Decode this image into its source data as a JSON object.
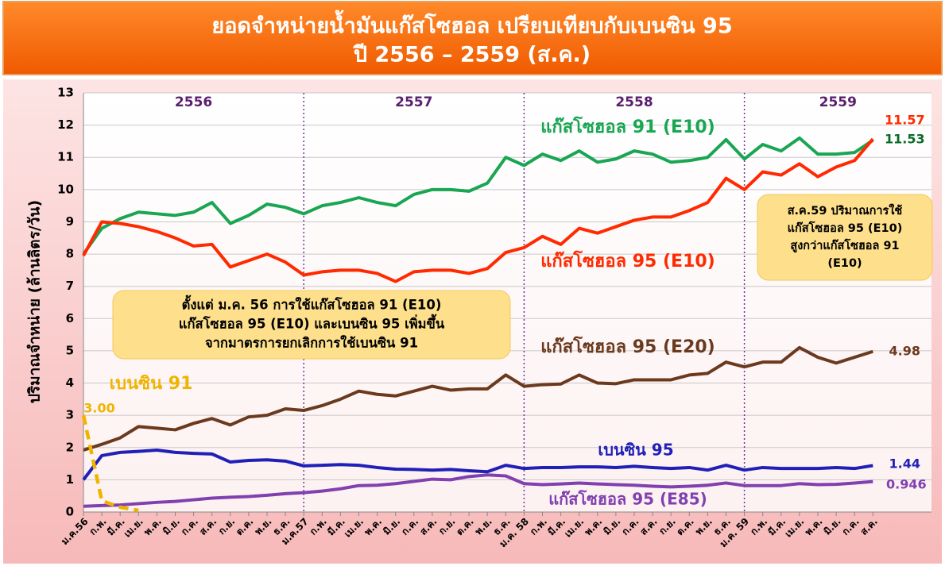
{
  "chart_data": {
    "type": "line",
    "title": [
      "ยอดจำหน่ายน้ำมันแก๊สโซฮอล เปรียบเทียบกับเบนซิน 95",
      "ปี 2556 – 2559 (ส.ค.)"
    ],
    "ylabel": "ปริมาณจำหน่าย  (ล้านลิตร/วัน)",
    "years": [
      "2556",
      "2557",
      "2558",
      "2559"
    ],
    "categories": [
      "ม.ค.56",
      "ก.พ.",
      "มี.ค.",
      "เม.ย.",
      "พ.ค.",
      "มิ.ย.",
      "ก.ค.",
      "ส.ค.",
      "ก.ย.",
      "ต.ค.",
      "พ.ย.",
      "ธ.ค.",
      "ม.ค.57",
      "ก.พ.",
      "มี.ค.",
      "เม.ย.",
      "พ.ค.",
      "มิ.ย.",
      "ก.ค.",
      "ส.ค.",
      "ก.ย.",
      "ต.ค.",
      "พ.ย.",
      "ธ.ค.",
      "ม.ค. 58",
      "ก.พ.",
      "มี.ค.",
      "เม.ย.",
      "พ.ค.",
      "มิ.ย.",
      "ก.ค.",
      "ส.ค.",
      "ก.ย.",
      "ต.ค.",
      "พ.ย.",
      "ธ.ค.",
      "ม.ค. 59",
      "ก.พ.",
      "มี.ค.",
      "เม.ย.",
      "พ.ค.",
      "มิ.ย.",
      "ก.ค.",
      "ส.ค."
    ],
    "ylim": [
      0,
      13
    ],
    "yticks": [
      0,
      1,
      2,
      3,
      4,
      5,
      6,
      7,
      8,
      9,
      10,
      11,
      12,
      13
    ],
    "grid": true,
    "series": [
      {
        "name": "แก๊สโซฮอล 91 (E10)",
        "color": "#19a653",
        "values": [
          8.0,
          8.8,
          9.1,
          9.3,
          9.25,
          9.2,
          9.3,
          9.6,
          8.95,
          9.2,
          9.55,
          9.45,
          9.25,
          9.5,
          9.6,
          9.75,
          9.6,
          9.5,
          9.85,
          10.0,
          10.0,
          9.95,
          10.2,
          11.0,
          10.75,
          11.1,
          10.9,
          11.2,
          10.85,
          10.95,
          11.2,
          11.1,
          10.85,
          10.9,
          11.0,
          11.55,
          10.95,
          11.4,
          11.2,
          11.6,
          11.1,
          11.1,
          11.15,
          11.53
        ],
        "value_labels": [
          null,
          null,
          null,
          null,
          null,
          null,
          null,
          null,
          null,
          null,
          null,
          null,
          null,
          null,
          null,
          null,
          null,
          null,
          null,
          null,
          null,
          null,
          null,
          null,
          null,
          null,
          null,
          null,
          null,
          null,
          null,
          null,
          null,
          null,
          null,
          null,
          null,
          null,
          null,
          null,
          null,
          null,
          null,
          "11.53"
        ]
      },
      {
        "name": "แก๊สโซฮอล 95 (E10)",
        "color": "#ff2a00",
        "values": [
          7.95,
          9.0,
          8.95,
          8.85,
          8.7,
          8.5,
          8.25,
          8.3,
          7.6,
          7.8,
          8.0,
          7.75,
          7.35,
          7.45,
          7.5,
          7.5,
          7.4,
          7.15,
          7.45,
          7.5,
          7.5,
          7.4,
          7.55,
          8.05,
          8.2,
          8.55,
          8.3,
          8.8,
          8.65,
          8.85,
          9.05,
          9.15,
          9.15,
          9.35,
          9.6,
          10.35,
          10.0,
          10.55,
          10.45,
          10.8,
          10.4,
          10.7,
          10.9,
          11.57
        ],
        "value_labels": [
          null,
          null,
          null,
          null,
          null,
          null,
          null,
          null,
          null,
          null,
          null,
          null,
          null,
          null,
          null,
          null,
          null,
          null,
          null,
          null,
          null,
          null,
          null,
          null,
          null,
          null,
          null,
          null,
          null,
          null,
          null,
          null,
          null,
          null,
          null,
          null,
          null,
          null,
          null,
          null,
          null,
          null,
          null,
          "11.57"
        ]
      },
      {
        "name": "แก๊สโซฮอล 95 (E20)",
        "color": "#6b3a1e",
        "values": [
          1.92,
          2.1,
          2.3,
          2.65,
          2.6,
          2.55,
          2.75,
          2.9,
          2.7,
          2.95,
          3.0,
          3.2,
          3.15,
          3.3,
          3.5,
          3.75,
          3.65,
          3.6,
          3.75,
          3.9,
          3.78,
          3.82,
          3.82,
          4.25,
          3.9,
          3.95,
          3.97,
          4.25,
          4.0,
          3.98,
          4.1,
          4.1,
          4.1,
          4.25,
          4.3,
          4.65,
          4.5,
          4.65,
          4.65,
          5.1,
          4.8,
          4.62,
          4.8,
          4.98
        ],
        "value_labels": [
          null,
          null,
          null,
          null,
          null,
          null,
          null,
          null,
          null,
          null,
          null,
          null,
          null,
          null,
          null,
          null,
          null,
          null,
          null,
          null,
          null,
          null,
          null,
          null,
          null,
          null,
          null,
          null,
          null,
          null,
          null,
          null,
          null,
          null,
          null,
          null,
          null,
          null,
          null,
          null,
          null,
          null,
          null,
          "4.98"
        ]
      },
      {
        "name": "เบนซิน 95",
        "color": "#2020b8",
        "values": [
          1.0,
          1.75,
          1.85,
          1.88,
          1.92,
          1.85,
          1.82,
          1.8,
          1.55,
          1.6,
          1.62,
          1.58,
          1.43,
          1.45,
          1.47,
          1.45,
          1.38,
          1.33,
          1.32,
          1.3,
          1.32,
          1.28,
          1.25,
          1.45,
          1.35,
          1.38,
          1.38,
          1.4,
          1.4,
          1.38,
          1.42,
          1.38,
          1.35,
          1.38,
          1.3,
          1.45,
          1.3,
          1.38,
          1.35,
          1.35,
          1.35,
          1.38,
          1.35,
          1.44
        ],
        "value_labels": [
          null,
          null,
          null,
          null,
          null,
          null,
          null,
          null,
          null,
          null,
          null,
          null,
          null,
          null,
          null,
          null,
          null,
          null,
          null,
          null,
          null,
          null,
          null,
          null,
          null,
          null,
          null,
          null,
          null,
          null,
          null,
          null,
          null,
          null,
          null,
          null,
          null,
          null,
          null,
          null,
          null,
          null,
          null,
          "1.44"
        ]
      },
      {
        "name": "แก๊สโซฮอล 95 (E85)",
        "color": "#8040b0",
        "values": [
          0.18,
          0.2,
          0.22,
          0.26,
          0.3,
          0.33,
          0.38,
          0.43,
          0.46,
          0.48,
          0.52,
          0.57,
          0.6,
          0.65,
          0.72,
          0.82,
          0.83,
          0.88,
          0.95,
          1.02,
          1.0,
          1.1,
          1.15,
          1.12,
          0.88,
          0.85,
          0.87,
          0.9,
          0.87,
          0.85,
          0.83,
          0.8,
          0.78,
          0.8,
          0.83,
          0.9,
          0.82,
          0.82,
          0.82,
          0.88,
          0.85,
          0.86,
          0.9,
          0.946
        ],
        "value_labels": [
          null,
          null,
          null,
          null,
          null,
          null,
          null,
          null,
          null,
          null,
          null,
          null,
          null,
          null,
          null,
          null,
          null,
          null,
          null,
          null,
          null,
          null,
          null,
          null,
          null,
          null,
          null,
          null,
          null,
          null,
          null,
          null,
          null,
          null,
          null,
          null,
          null,
          null,
          null,
          null,
          null,
          null,
          null,
          "0.946"
        ]
      },
      {
        "name": "เบนซิน 91",
        "color": "#f0b400",
        "dashed": true,
        "values": [
          3.0,
          0.35,
          0.15,
          0.05,
          null,
          null,
          null,
          null,
          null,
          null,
          null,
          null,
          null,
          null,
          null,
          null,
          null,
          null,
          null,
          null,
          null,
          null,
          null,
          null,
          null,
          null,
          null,
          null,
          null,
          null,
          null,
          null,
          null,
          null,
          null,
          null,
          null,
          null,
          null,
          null,
          null,
          null,
          null,
          null
        ],
        "value_labels": [
          "3.00",
          null,
          null,
          null,
          null,
          null,
          null,
          null,
          null,
          null,
          null,
          null,
          null,
          null,
          null,
          null,
          null,
          null,
          null,
          null,
          null,
          null,
          null,
          null,
          null,
          null,
          null,
          null,
          null,
          null,
          null,
          null,
          null,
          null,
          null,
          null,
          null,
          null,
          null,
          null,
          null,
          null,
          null,
          null
        ]
      }
    ],
    "annotations": [
      [
        "ตั้งแต่ ม.ค. 56 การใช้แก๊สโซฮอล 91 (E10)",
        "แก๊สโซฮอล 95 (E10) และเบนซิน 95 เพิ่มขึ้น",
        "จากมาตรการยกเลิกการใช้เบนซิน 91"
      ],
      [
        "ส.ค.59 ปริมาณการใช้",
        "แก๊สโซฮอล 95 (E10)",
        "สูงกว่าแก๊สโซฮอล 91",
        "(E10)"
      ]
    ]
  }
}
